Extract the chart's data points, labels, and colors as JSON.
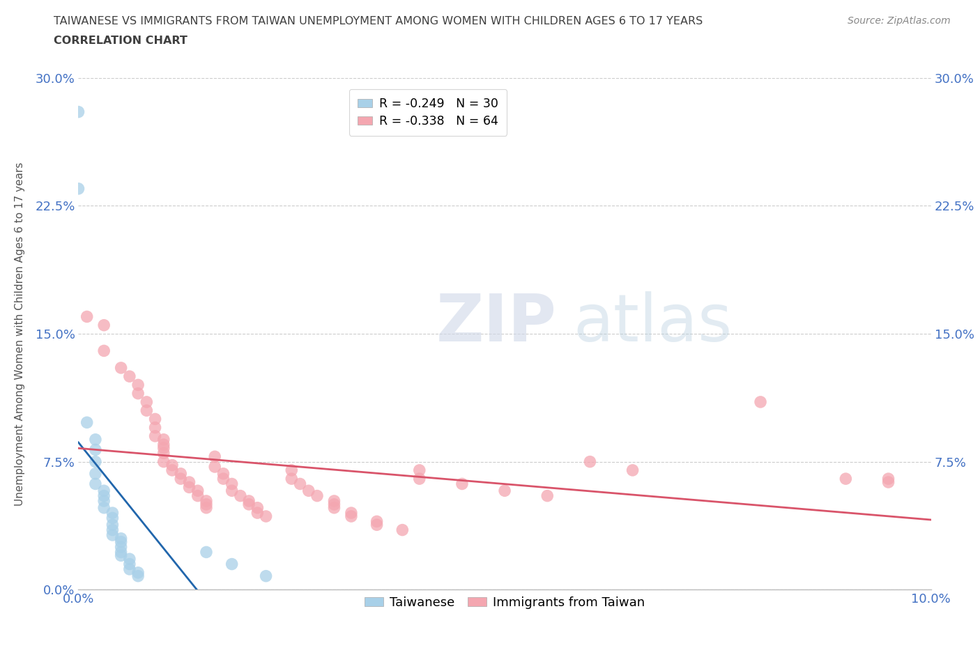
{
  "title_line1": "TAIWANESE VS IMMIGRANTS FROM TAIWAN UNEMPLOYMENT AMONG WOMEN WITH CHILDREN AGES 6 TO 17 YEARS",
  "title_line2": "CORRELATION CHART",
  "source": "Source: ZipAtlas.com",
  "ylabel": "Unemployment Among Women with Children Ages 6 to 17 years",
  "watermark_zip": "ZIP",
  "watermark_atlas": "atlas",
  "legend_blue_label": "Taiwanese",
  "legend_pink_label": "Immigrants from Taiwan",
  "legend_blue_R": "R = -0.249",
  "legend_blue_N": "N = 30",
  "legend_pink_R": "R = -0.338",
  "legend_pink_N": "N = 64",
  "xlim": [
    0.0,
    0.1
  ],
  "ylim": [
    0.0,
    0.3
  ],
  "x_ticks": [
    0.0,
    0.025,
    0.05,
    0.075,
    0.1
  ],
  "y_ticks": [
    0.0,
    0.075,
    0.15,
    0.225,
    0.3
  ],
  "blue_color": "#a8d0e8",
  "pink_color": "#f4a6b0",
  "blue_line_color": "#2166ac",
  "pink_line_color": "#d9546a",
  "grid_color": "#cccccc",
  "title_color": "#404040",
  "axis_label_color": "#4472c4",
  "blue_scatter": [
    [
      0.0,
      0.28
    ],
    [
      0.0,
      0.235
    ],
    [
      0.001,
      0.098
    ],
    [
      0.002,
      0.088
    ],
    [
      0.002,
      0.082
    ],
    [
      0.002,
      0.075
    ],
    [
      0.002,
      0.068
    ],
    [
      0.002,
      0.062
    ],
    [
      0.003,
      0.058
    ],
    [
      0.003,
      0.055
    ],
    [
      0.003,
      0.052
    ],
    [
      0.003,
      0.048
    ],
    [
      0.004,
      0.045
    ],
    [
      0.004,
      0.042
    ],
    [
      0.004,
      0.038
    ],
    [
      0.004,
      0.035
    ],
    [
      0.004,
      0.032
    ],
    [
      0.005,
      0.03
    ],
    [
      0.005,
      0.028
    ],
    [
      0.005,
      0.025
    ],
    [
      0.005,
      0.022
    ],
    [
      0.005,
      0.02
    ],
    [
      0.006,
      0.018
    ],
    [
      0.006,
      0.015
    ],
    [
      0.006,
      0.012
    ],
    [
      0.007,
      0.01
    ],
    [
      0.007,
      0.008
    ],
    [
      0.015,
      0.022
    ],
    [
      0.018,
      0.015
    ],
    [
      0.022,
      0.008
    ]
  ],
  "pink_scatter": [
    [
      0.001,
      0.16
    ],
    [
      0.003,
      0.155
    ],
    [
      0.003,
      0.14
    ],
    [
      0.005,
      0.13
    ],
    [
      0.006,
      0.125
    ],
    [
      0.007,
      0.12
    ],
    [
      0.007,
      0.115
    ],
    [
      0.008,
      0.11
    ],
    [
      0.008,
      0.105
    ],
    [
      0.009,
      0.1
    ],
    [
      0.009,
      0.095
    ],
    [
      0.009,
      0.09
    ],
    [
      0.01,
      0.088
    ],
    [
      0.01,
      0.085
    ],
    [
      0.01,
      0.083
    ],
    [
      0.01,
      0.08
    ],
    [
      0.01,
      0.075
    ],
    [
      0.011,
      0.073
    ],
    [
      0.011,
      0.07
    ],
    [
      0.012,
      0.068
    ],
    [
      0.012,
      0.065
    ],
    [
      0.013,
      0.063
    ],
    [
      0.013,
      0.06
    ],
    [
      0.014,
      0.058
    ],
    [
      0.014,
      0.055
    ],
    [
      0.015,
      0.052
    ],
    [
      0.015,
      0.05
    ],
    [
      0.015,
      0.048
    ],
    [
      0.016,
      0.078
    ],
    [
      0.016,
      0.072
    ],
    [
      0.017,
      0.068
    ],
    [
      0.017,
      0.065
    ],
    [
      0.018,
      0.062
    ],
    [
      0.018,
      0.058
    ],
    [
      0.019,
      0.055
    ],
    [
      0.02,
      0.052
    ],
    [
      0.02,
      0.05
    ],
    [
      0.021,
      0.048
    ],
    [
      0.021,
      0.045
    ],
    [
      0.022,
      0.043
    ],
    [
      0.025,
      0.07
    ],
    [
      0.025,
      0.065
    ],
    [
      0.026,
      0.062
    ],
    [
      0.027,
      0.058
    ],
    [
      0.028,
      0.055
    ],
    [
      0.03,
      0.052
    ],
    [
      0.03,
      0.05
    ],
    [
      0.03,
      0.048
    ],
    [
      0.032,
      0.045
    ],
    [
      0.032,
      0.043
    ],
    [
      0.035,
      0.04
    ],
    [
      0.035,
      0.038
    ],
    [
      0.038,
      0.035
    ],
    [
      0.04,
      0.07
    ],
    [
      0.04,
      0.065
    ],
    [
      0.045,
      0.062
    ],
    [
      0.05,
      0.058
    ],
    [
      0.055,
      0.055
    ],
    [
      0.06,
      0.075
    ],
    [
      0.065,
      0.07
    ],
    [
      0.08,
      0.11
    ],
    [
      0.09,
      0.065
    ],
    [
      0.095,
      0.065
    ],
    [
      0.095,
      0.063
    ]
  ]
}
